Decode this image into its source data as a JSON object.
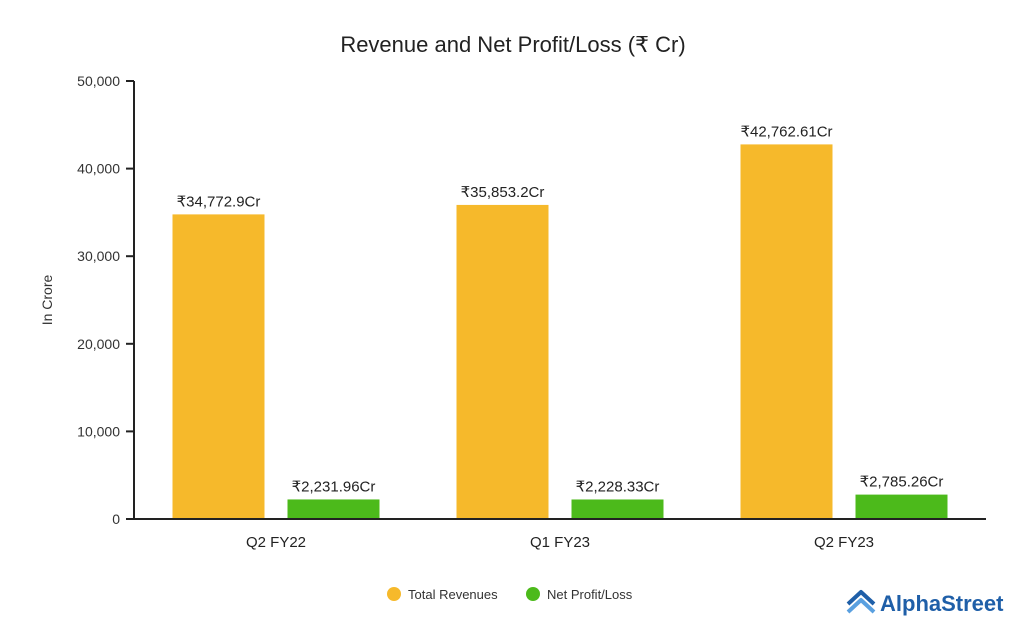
{
  "chart_data": {
    "type": "bar",
    "title": "Revenue and Net Profit/Loss (₹ Cr)",
    "ylabel": "In Crore",
    "xlabel": "",
    "ylim": [
      0,
      50000
    ],
    "yticks": [
      0,
      10000,
      20000,
      30000,
      40000,
      50000
    ],
    "ytick_labels": [
      "0",
      "10,000",
      "20,000",
      "30,000",
      "40,000",
      "50,000"
    ],
    "categories": [
      "Q2 FY22",
      "Q1 FY23",
      "Q2 FY23"
    ],
    "series": [
      {
        "name": "Total Revenues",
        "color": "#F6B92B",
        "values": [
          34772.9,
          35853.2,
          42762.61
        ],
        "labels": [
          "₹34,772.9Cr",
          "₹35,853.2Cr",
          "₹42,762.61Cr"
        ]
      },
      {
        "name": "Net Profit/Loss",
        "color": "#4CBA1B",
        "values": [
          2231.96,
          2228.33,
          2785.26
        ],
        "labels": [
          "₹2,231.96Cr",
          "₹2,228.33Cr",
          "₹2,785.26Cr"
        ]
      }
    ],
    "grid": false,
    "legend": "bottom-center"
  },
  "brand": {
    "name": "AlphaStreet",
    "color": "#1f5fa8",
    "icon": "alphastreet-logo-icon"
  }
}
